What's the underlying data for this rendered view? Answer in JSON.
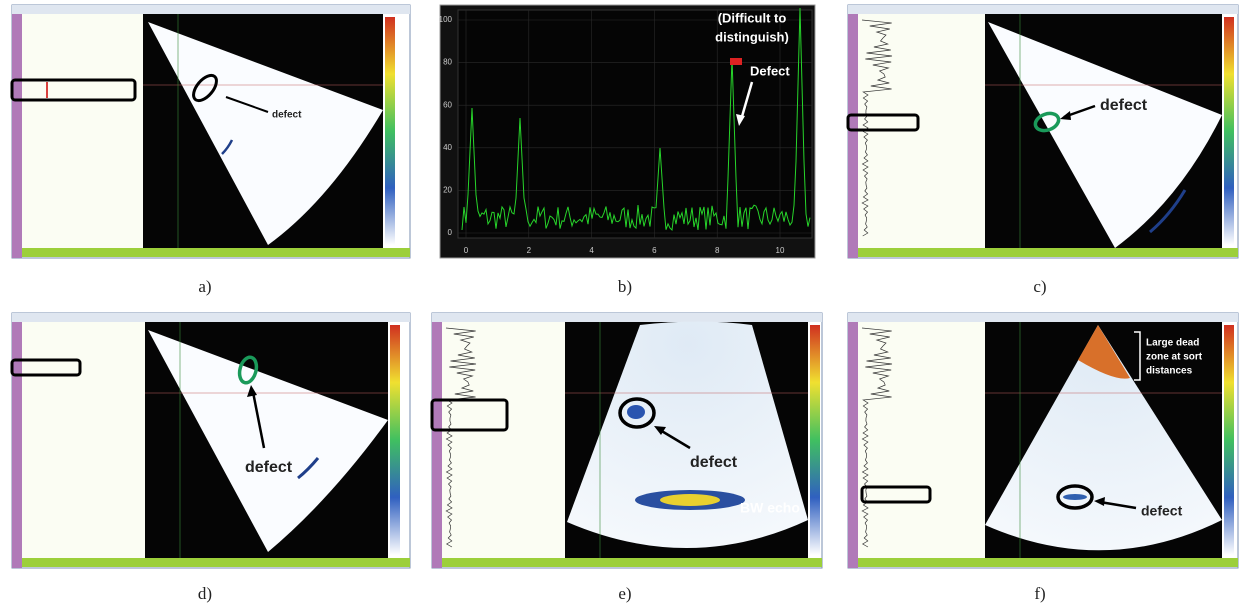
{
  "panels": [
    {
      "caption": "a)",
      "annotations": [
        "defect"
      ]
    },
    {
      "caption": "b)",
      "annotations": [
        "(Difficult to",
        "distinguish)",
        "Defect"
      ],
      "yticks": [
        "0",
        "20",
        "40",
        "60",
        "80",
        "100"
      ],
      "xticks": [
        "0",
        "2",
        "4",
        "6",
        "8",
        "10"
      ]
    },
    {
      "caption": "c)",
      "annotations": [
        "defect"
      ]
    },
    {
      "caption": "d)",
      "annotations": [
        "defect"
      ]
    },
    {
      "caption": "e)",
      "annotations": [
        "defect",
        "BW echo"
      ]
    },
    {
      "caption": "f)",
      "annotations": [
        "Large dead",
        "zone at sort",
        "distances",
        "defect"
      ]
    }
  ]
}
